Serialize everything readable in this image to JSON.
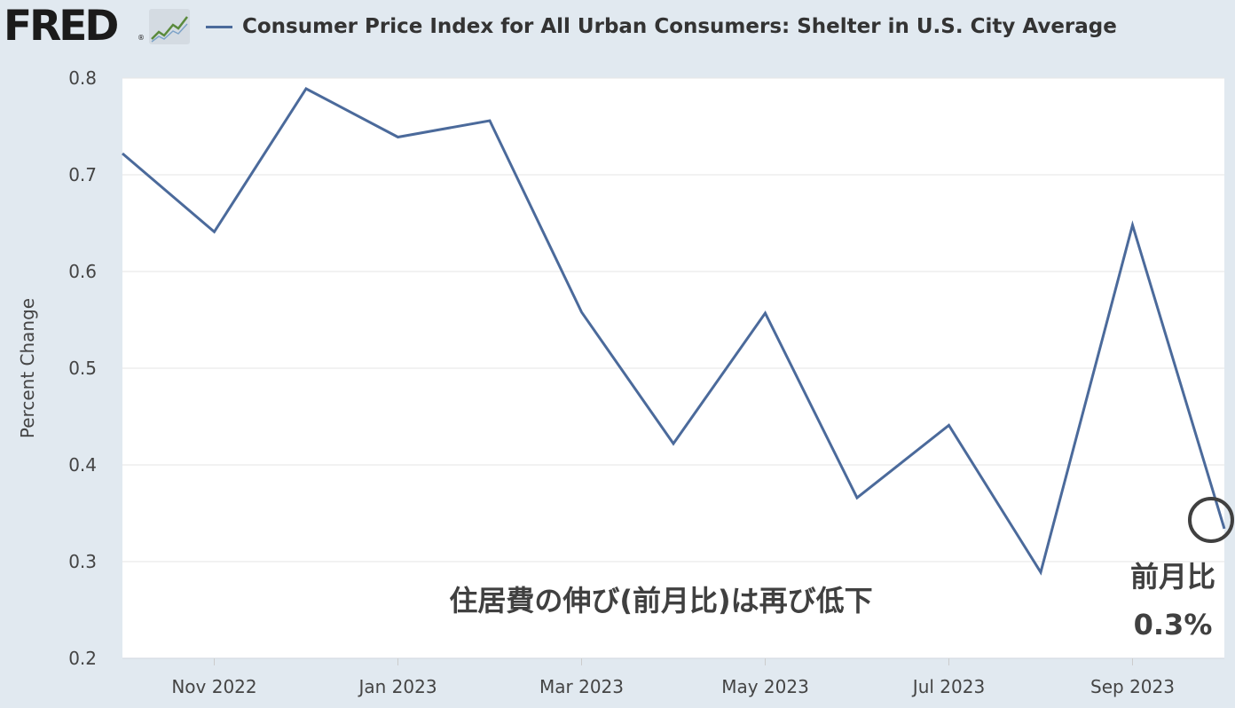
{
  "header": {
    "logo_text": "FRED",
    "logo_registered": "®",
    "logo_graph_icon": "line-graph-icon",
    "series_title": "Consumer Price Index for All Urban Consumers: Shelter in U.S. City Average"
  },
  "colors": {
    "background": "#e1e9f0",
    "plot_background": "#ffffff",
    "series_line": "#4b6a9b",
    "annotation_text": "#404040",
    "annotation_circle": "#404040"
  },
  "annotations": {
    "main_text": "住居費の伸び(前月比)は再び低下",
    "callout_label": "前月比",
    "callout_value": "0.3%"
  },
  "chart_data": {
    "type": "line",
    "ylabel": "Percent Change",
    "xlabel": "",
    "ylim": [
      0.2,
      0.8
    ],
    "yticks": [
      "0.2",
      "0.3",
      "0.4",
      "0.5",
      "0.6",
      "0.7",
      "0.8"
    ],
    "xticks": [
      "Nov 2022",
      "Jan 2023",
      "Mar 2023",
      "May 2023",
      "Jul 2023",
      "Sep 2023"
    ],
    "grid": true,
    "series": [
      {
        "name": "Consumer Price Index for All Urban Consumers: Shelter in U.S. City Average",
        "x": [
          "2022-10",
          "2022-11",
          "2022-12",
          "2023-01",
          "2023-02",
          "2023-03",
          "2023-04",
          "2023-05",
          "2023-06",
          "2023-07",
          "2023-08",
          "2023-09",
          "2023-10"
        ],
        "values": [
          0.722,
          0.641,
          0.789,
          0.739,
          0.756,
          0.558,
          0.422,
          0.557,
          0.366,
          0.441,
          0.289,
          0.648,
          0.334
        ]
      }
    ]
  }
}
